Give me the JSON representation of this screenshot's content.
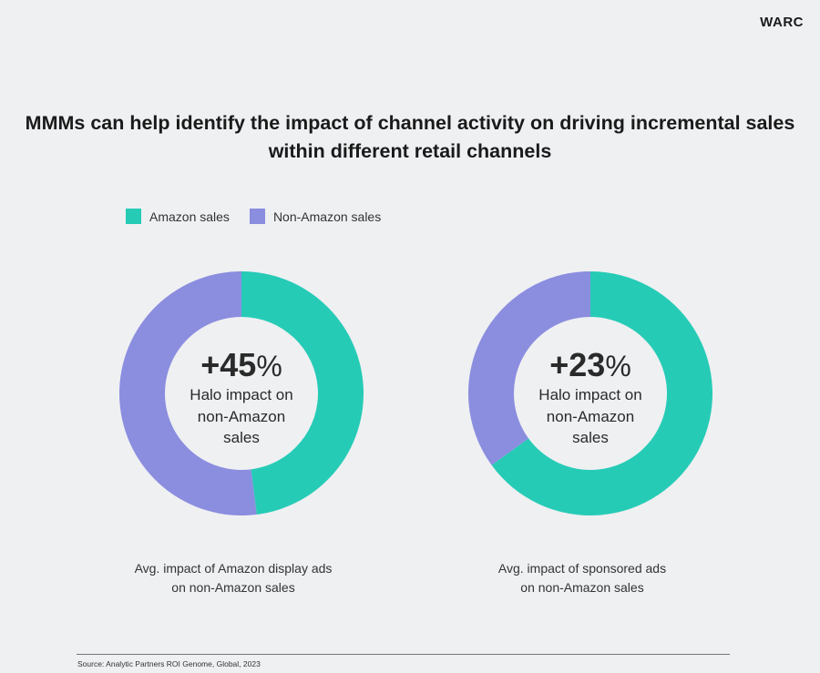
{
  "brand": "WARC",
  "chart_data": [
    {
      "type": "pie",
      "donut": true,
      "title": "MMMs can help identify the impact of channel activity on driving incremental sales within different retail channels",
      "legend": {
        "placement": "top-left",
        "entries": [
          {
            "name": "Amazon sales",
            "color": "#26cbb6"
          },
          {
            "name": "Non-Amazon sales",
            "color": "#8b8ddf"
          }
        ]
      },
      "charts": [
        {
          "slices": [
            {
              "name": "Amazon sales",
              "value": 48
            },
            {
              "name": "Non-Amazon sales",
              "value": 52
            }
          ],
          "center_value": "+45",
          "center_unit": "%",
          "center_label": [
            "Halo impact on",
            "non-Amazon",
            "sales"
          ],
          "caption": [
            "Avg. impact of Amazon display ads",
            "on non-Amazon sales"
          ]
        },
        {
          "slices": [
            {
              "name": "Amazon sales",
              "value": 65
            },
            {
              "name": "Non-Amazon sales",
              "value": 35
            }
          ],
          "center_value": "+23",
          "center_unit": "%",
          "center_label": [
            "Halo impact on",
            "non-Amazon",
            "sales"
          ],
          "caption": [
            "Avg. impact of sponsored ads",
            "on non-Amazon sales"
          ]
        }
      ]
    }
  ],
  "source": "Source: Analytic Partners ROI Genome, Global,  2023"
}
